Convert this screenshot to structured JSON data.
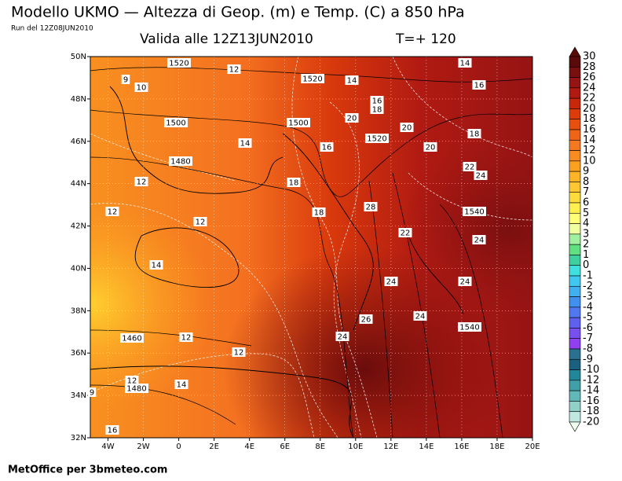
{
  "header": {
    "title": "Modello UKMO — Altezza di Geop. (m) e Temp. (C) a 850 hPa",
    "run": "Run del 12Z08JUN2010",
    "valid": "Valida alle 12Z13JUN2010",
    "forecast": "T=+ 120"
  },
  "map": {
    "lat_labels": [
      "50N",
      "48N",
      "46N",
      "44N",
      "42N",
      "40N",
      "38N",
      "36N",
      "34N",
      "32N"
    ],
    "lon_labels": [
      "4W",
      "2W",
      "0",
      "2E",
      "4E",
      "6E",
      "8E",
      "10E",
      "12E",
      "14E",
      "16E",
      "18E",
      "20E"
    ],
    "contour_labels": [
      "1520",
      "12",
      "1520",
      "14",
      "14",
      "16",
      "9",
      "10",
      "16",
      "18",
      "1500",
      "1500",
      "20",
      "20",
      "18",
      "1520",
      "14",
      "16",
      "20",
      "1480",
      "22",
      "24",
      "12",
      "18",
      "28",
      "18",
      "1540",
      "12",
      "12",
      "22",
      "24",
      "14",
      "24",
      "24",
      "24",
      "26",
      "1540",
      "24",
      "1460",
      "12",
      "12",
      "12",
      "1480",
      "14",
      "9",
      "16"
    ]
  },
  "colorbar": {
    "levels": [
      30,
      28,
      26,
      24,
      22,
      20,
      18,
      16,
      14,
      12,
      10,
      9,
      8,
      7,
      6,
      5,
      4,
      3,
      2,
      1,
      0,
      -1,
      -2,
      -3,
      -4,
      -5,
      -6,
      -7,
      -8,
      -9,
      -10,
      -12,
      -14,
      -16,
      -18,
      -20
    ],
    "colors": [
      "#5a0a0a",
      "#7a0f0f",
      "#961414",
      "#b01a12",
      "#c8280a",
      "#dc3c0a",
      "#e85010",
      "#f06418",
      "#f47820",
      "#f88c20",
      "#fca020",
      "#ffb428",
      "#ffc832",
      "#ffdc3c",
      "#fff050",
      "#ffff78",
      "#f0ffa0",
      "#a0f0a0",
      "#60e080",
      "#40d0a0",
      "#40e0e0",
      "#40c8f0",
      "#40b0f0",
      "#4090f0",
      "#5078f0",
      "#6060f0",
      "#7850f0",
      "#9040f0",
      "#2a7090",
      "#1a6080",
      "#208898",
      "#40a0a8",
      "#60b8b8",
      "#90d0c8",
      "#c0e8e0",
      "#f0fff0"
    ]
  },
  "footer": {
    "credit": "MetOffice per 3bmeteo.com"
  }
}
